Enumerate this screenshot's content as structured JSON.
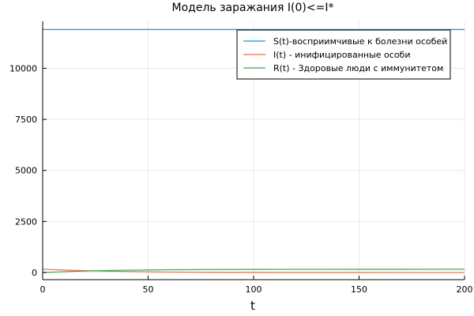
{
  "chart_data": {
    "type": "line",
    "title": "Модель заражания I(0)<=I*",
    "xlabel": "t",
    "ylabel": "",
    "xlim": [
      0,
      200
    ],
    "ylim": [
      -350,
      12300
    ],
    "x_ticks": [
      0,
      50,
      100,
      150,
      200
    ],
    "x_tick_labels": [
      "0",
      "50",
      "100",
      "150",
      "200"
    ],
    "y_ticks": [
      0,
      2500,
      5000,
      7500,
      10000
    ],
    "y_tick_labels": [
      "0",
      "2500",
      "5000",
      "7500",
      "10000"
    ],
    "grid": true,
    "legend_position": "top-right",
    "series": [
      {
        "name": "S(t)-восприимчивые к болезни особей",
        "color": "#009AFA",
        "x": [
          0,
          50,
          100,
          150,
          200
        ],
        "y": [
          11900,
          11900,
          11900,
          11900,
          11900
        ]
      },
      {
        "name": "I(t) - инифицированные особи",
        "color": "#E36F47",
        "x": [
          0,
          10,
          20,
          30,
          40,
          50,
          60,
          80,
          100,
          120,
          150,
          200
        ],
        "y": [
          160,
          120,
          90,
          65,
          48,
          35,
          25,
          13,
          7,
          4,
          2,
          0
        ]
      },
      {
        "name": "R(t) - Здоровые люди с иммунитетом",
        "color": "#3EA44E",
        "x": [
          0,
          10,
          20,
          30,
          40,
          50,
          60,
          80,
          100,
          120,
          150,
          200
        ],
        "y": [
          0,
          40,
          70,
          95,
          112,
          125,
          135,
          147,
          153,
          156,
          158,
          160
        ]
      }
    ]
  }
}
